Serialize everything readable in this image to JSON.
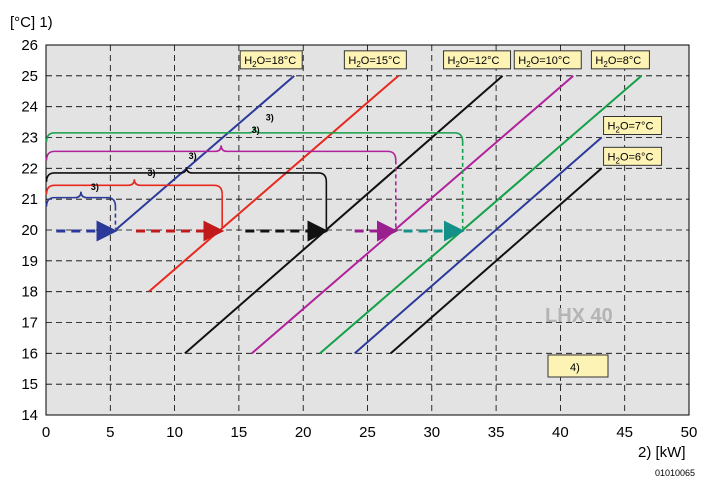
{
  "chart_data": {
    "type": "line",
    "y_unit_label": "[°C] 1)",
    "x_unit_label": "2) [kW]",
    "figure_code": "01010065",
    "model_label": "LHX 40",
    "box_note": "4)",
    "xlim": [
      0,
      50
    ],
    "ylim": [
      14,
      26
    ],
    "x_ticks": [
      "0",
      "5",
      "10",
      "15",
      "20",
      "25",
      "30",
      "35",
      "40",
      "45",
      "50"
    ],
    "y_ticks": [
      "14",
      "15",
      "16",
      "17",
      "18",
      "19",
      "20",
      "21",
      "22",
      "23",
      "24",
      "25",
      "26"
    ],
    "grid": "dashed",
    "series": [
      {
        "name": "H2O=18°C",
        "label_prefix": "H",
        "label_sub": "2",
        "label_suffix": "O=18°C",
        "color": "#2b3a9a",
        "x": [
          5.4,
          19.3
        ],
        "y": [
          20,
          25
        ]
      },
      {
        "name": "H2O=15°C",
        "label_prefix": "H",
        "label_sub": "2",
        "label_suffix": "O=15°C",
        "color": "#e8281e",
        "x": [
          8.0,
          27.4
        ],
        "y": [
          18,
          25
        ]
      },
      {
        "name": "H2O=12°C",
        "label_prefix": "H",
        "label_sub": "2",
        "label_suffix": "O=12°C",
        "color": "#111111",
        "x": [
          10.8,
          35.5
        ],
        "y": [
          16,
          25
        ]
      },
      {
        "name": "H2O=10°C",
        "label_prefix": "H",
        "label_sub": "2",
        "label_suffix": "O=10°C",
        "color": "#b0219a",
        "x": [
          16.0,
          41.0
        ],
        "y": [
          16,
          25
        ]
      },
      {
        "name": "H2O=8°C",
        "label_prefix": "H",
        "label_sub": "2",
        "label_suffix": "O=8°C",
        "color": "#15a04a",
        "x": [
          21.3,
          46.3
        ],
        "y": [
          16,
          25
        ]
      },
      {
        "name": "H2O=7°C",
        "label_prefix": "H",
        "label_sub": "2",
        "label_suffix": "O=7°C",
        "color": "#2b3a9a",
        "x": [
          24.0,
          43.2
        ],
        "y": [
          16,
          23
        ]
      },
      {
        "name": "H2O=6°C",
        "label_prefix": "H",
        "label_sub": "2",
        "label_suffix": "O=6°C",
        "color": "#111111",
        "x": [
          26.8,
          43.2
        ],
        "y": [
          16,
          22
        ]
      }
    ],
    "arrows": [
      {
        "color": "#2b3a9a",
        "x": [
          0.8,
          5.4
        ],
        "y": 20
      },
      {
        "color": "#c01a1a",
        "x": [
          7.0,
          13.7
        ],
        "y": 20
      },
      {
        "color": "#111111",
        "x": [
          15.5,
          21.8
        ],
        "y": 20
      },
      {
        "color": "#9a1f8e",
        "x": [
          24.0,
          27.2
        ],
        "y": 20
      },
      {
        "color": "#139088",
        "x": [
          27.8,
          32.4
        ],
        "y": 20
      }
    ],
    "annotations": [
      {
        "text": "3)",
        "x": 3.8,
        "y": 21.3
      },
      {
        "text": "3)",
        "x": 8.2,
        "y": 21.75
      },
      {
        "text": "3)",
        "x": 11.4,
        "y": 22.3
      },
      {
        "text": "3)",
        "x": 16.3,
        "y": 23.15
      },
      {
        "text": "3)",
        "x": 17.4,
        "y": 23.55
      }
    ]
  }
}
